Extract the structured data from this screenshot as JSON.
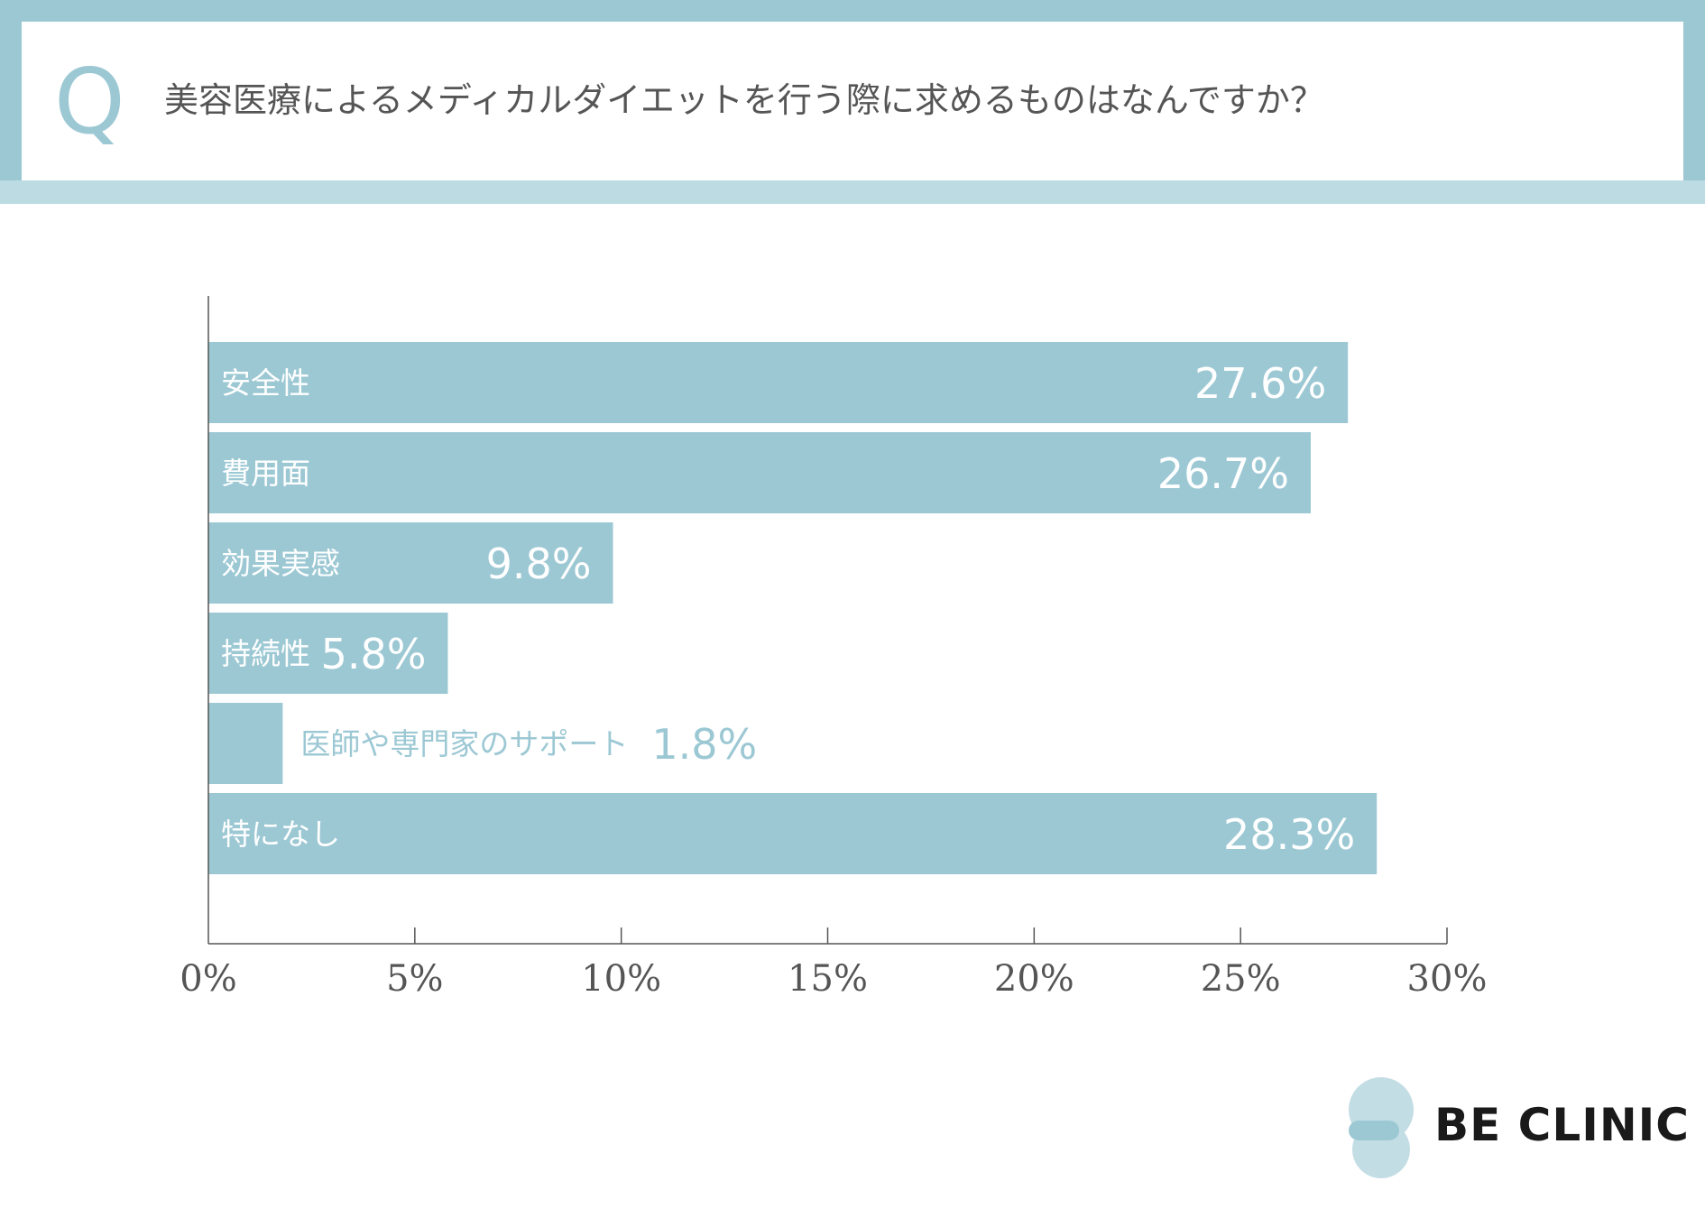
{
  "question": {
    "marker": "Q",
    "text": "美容医療によるメディカルダイエットを行う際に求めるものはなんですか？"
  },
  "chart_data": {
    "type": "bar",
    "orientation": "horizontal",
    "title": "美容医療によるメディカルダイエットを行う際に求めるものはなんですか？",
    "categories": [
      "安全性",
      "費用面",
      "効果実感",
      "持続性",
      "医師や専門家のサポート",
      "特になし"
    ],
    "values": [
      27.6,
      26.7,
      9.8,
      5.8,
      1.8,
      28.3
    ],
    "value_labels": [
      "27.6%",
      "26.7%",
      "9.8%",
      "5.8%",
      "1.8%",
      "28.3%"
    ],
    "xlim": [
      0,
      30
    ],
    "ticks": [
      0,
      5,
      10,
      15,
      20,
      25,
      30
    ],
    "tick_labels": [
      "0%",
      "5%",
      "10%",
      "15%",
      "20%",
      "25%",
      "30%"
    ],
    "xlabel": "",
    "ylabel": "",
    "grid": false
  },
  "colors": {
    "bar": "#9cc8d4",
    "bar_text": "#ffffff",
    "outside_text": "#9cc8d4",
    "axis": "#555555",
    "tick_label": "#555555"
  },
  "brand": {
    "name": "BE CLINIC"
  }
}
